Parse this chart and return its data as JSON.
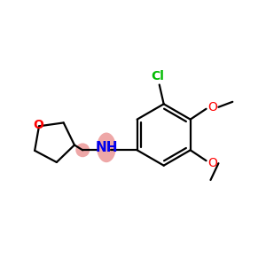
{
  "bg_color": "#ffffff",
  "atom_colors": {
    "C": "#000000",
    "N": "#0000ee",
    "O": "#ff0000",
    "Cl": "#00bb00",
    "H": "#000000"
  },
  "highlight_color": "#e06060",
  "highlight_alpha": 0.55,
  "figsize": [
    3.0,
    3.0
  ],
  "dpi": 100,
  "lw": 1.6
}
